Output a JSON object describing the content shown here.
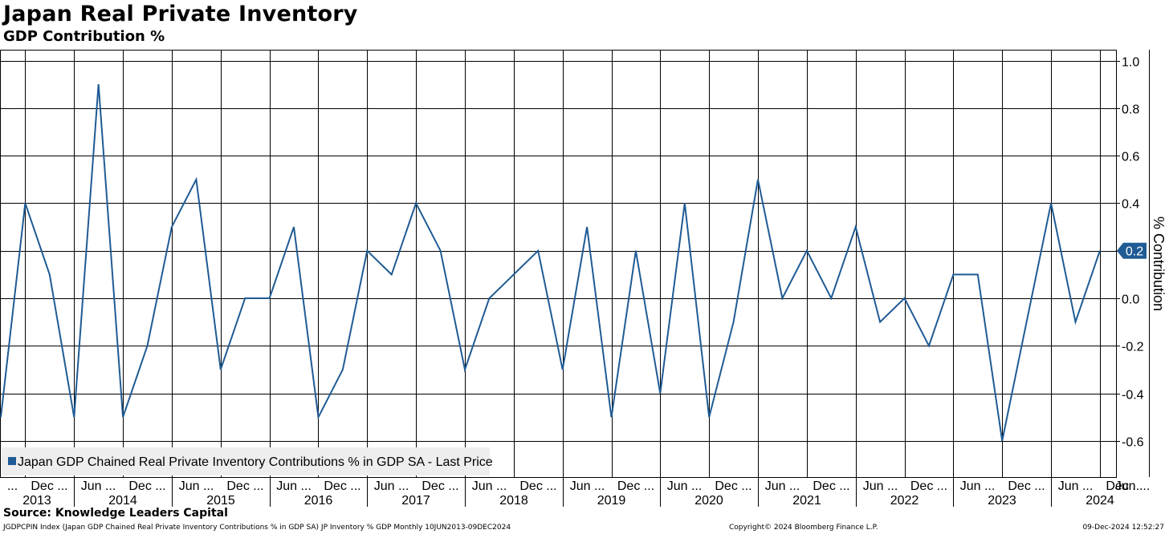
{
  "title": "Japan Real Private Inventory",
  "subtitle": "GDP Contribution %",
  "source": "Source: Knowledge Leaders Capital",
  "footer": {
    "left": "JGDPCPIN Index (Japan GDP Chained Real Private Inventory Contributions % in GDP SA) JP Inventory % GDP  Monthly 10JUN2013-09DEC2024",
    "center": "Copyright© 2024 Bloomberg Finance L.P.",
    "right": "09-Dec-2024 12:52:27"
  },
  "colors": {
    "series": "#1f5b94",
    "grid": "#000000",
    "legend_bg": "#eeeeee"
  },
  "chart_data": {
    "type": "line",
    "title": "Japan Real Private Inventory",
    "subtitle": "GDP Contribution %",
    "ylabel": "% Contribution",
    "ylim": [
      -0.7,
      1.05
    ],
    "yticks": [
      1.0,
      0.8,
      0.6,
      0.4,
      0.2,
      0.0,
      -0.2,
      -0.4,
      -0.6
    ],
    "ytick_labels": [
      "1.0",
      "0.8",
      "0.6",
      "0.4",
      "0.2",
      "0.0",
      "-0.2",
      "-0.4",
      "-0.6"
    ],
    "grid": true,
    "legend_position": "bottom-left",
    "month_labels": [
      "...",
      "Dec ...",
      "Jun ...",
      "Dec ...",
      "Jun ...",
      "Dec ...",
      "Jun ...",
      "Dec ...",
      "Jun ...",
      "Dec ...",
      "Jun ...",
      "Dec ...",
      "Jun ...",
      "Dec ...",
      "Jun ...",
      "Dec ...",
      "Jun ...",
      "Dec ...",
      "Jun ...",
      "Dec ...",
      "Jun ...",
      "Dec ...",
      "Jun ...",
      "Dec ...",
      "Jun ..."
    ],
    "year_labels": [
      "2013",
      "2014",
      "2015",
      "2016",
      "2017",
      "2018",
      "2019",
      "2020",
      "2021",
      "2022",
      "2023",
      "2024"
    ],
    "x": [
      "2013Q2",
      "2013Q3",
      "2013Q4",
      "2014Q1",
      "2014Q2",
      "2014Q3",
      "2014Q4",
      "2015Q1",
      "2015Q2",
      "2015Q3",
      "2015Q4",
      "2016Q1",
      "2016Q2",
      "2016Q3",
      "2016Q4",
      "2017Q1",
      "2017Q2",
      "2017Q3",
      "2017Q4",
      "2018Q1",
      "2018Q2",
      "2018Q3",
      "2018Q4",
      "2019Q1",
      "2019Q2",
      "2019Q3",
      "2019Q4",
      "2020Q1",
      "2020Q2",
      "2020Q3",
      "2020Q4",
      "2021Q1",
      "2021Q2",
      "2021Q3",
      "2021Q4",
      "2022Q1",
      "2022Q2",
      "2022Q3",
      "2022Q4",
      "2023Q1",
      "2023Q2",
      "2023Q3",
      "2023Q4",
      "2024Q1",
      "2024Q2",
      "2024Q3"
    ],
    "series": [
      {
        "name": "Japan GDP Chained Real Private Inventory Contributions % in GDP SA - Last Price",
        "values": [
          -0.5,
          0.4,
          0.1,
          -0.5,
          0.9,
          -0.5,
          -0.2,
          0.3,
          0.5,
          -0.3,
          0.0,
          0.0,
          0.3,
          -0.5,
          -0.3,
          0.2,
          0.1,
          0.4,
          0.2,
          -0.3,
          0.0,
          0.1,
          0.2,
          -0.3,
          0.3,
          -0.5,
          0.2,
          -0.4,
          0.4,
          -0.5,
          -0.1,
          0.5,
          0.0,
          0.2,
          0.0,
          0.3,
          -0.1,
          0.0,
          -0.2,
          0.1,
          0.1,
          -0.6,
          -0.1,
          0.4,
          -0.1,
          0.2
        ]
      }
    ],
    "last_value_label": "0.2"
  }
}
